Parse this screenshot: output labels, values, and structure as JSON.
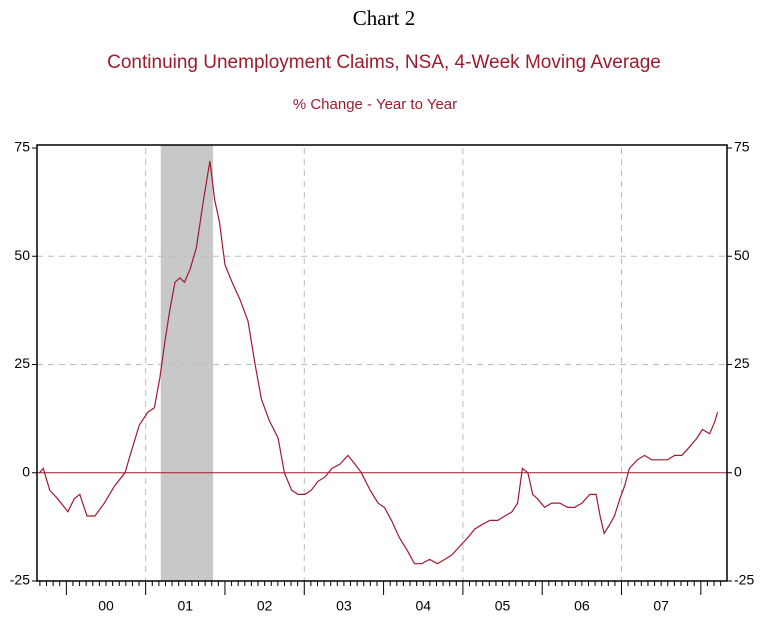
{
  "chart_data": {
    "type": "line",
    "header": "Chart 2",
    "title": "Continuing Unemployment Claims, NSA, 4-Week Moving Average",
    "subtitle": "% Change - Year to Year",
    "color": "#9e1b2e",
    "x": [
      1999.66,
      1999.71,
      1999.79,
      1999.89,
      2000.02,
      2000.1,
      2000.17,
      2000.26,
      2000.36,
      2000.48,
      2000.61,
      2000.74,
      2000.82,
      2000.92,
      2001.03,
      2001.11,
      2001.18,
      2001.24,
      2001.3,
      2001.37,
      2001.43,
      2001.49,
      2001.56,
      2001.64,
      2001.72,
      2001.81,
      2001.87,
      2001.93,
      2002.0,
      2002.09,
      2002.19,
      2002.29,
      2002.38,
      2002.46,
      2002.56,
      2002.67,
      2002.75,
      2002.84,
      2002.92,
      2003.01,
      2003.09,
      2003.17,
      2003.26,
      2003.35,
      2003.45,
      2003.55,
      2003.64,
      2003.72,
      2003.83,
      2003.93,
      2004.01,
      2004.1,
      2004.2,
      2004.3,
      2004.39,
      2004.48,
      2004.58,
      2004.68,
      2004.77,
      2004.86,
      2004.96,
      2005.06,
      2005.15,
      2005.24,
      2005.34,
      2005.44,
      2005.53,
      2005.62,
      2005.69,
      2005.75,
      2005.82,
      2005.88,
      2005.94,
      2006.03,
      2006.12,
      2006.22,
      2006.32,
      2006.41,
      2006.5,
      2006.6,
      2006.68,
      2006.73,
      2006.78,
      2006.85,
      2006.91,
      2006.98,
      2007.04,
      2007.1,
      2007.2,
      2007.29,
      2007.38,
      2007.48,
      2007.58,
      2007.67,
      2007.76,
      2007.86,
      2007.95,
      2008.02,
      2008.11,
      2008.18,
      2008.21
    ],
    "values": [
      0,
      1,
      -4,
      -6,
      -9,
      -6,
      -5,
      -10,
      -10,
      -7,
      -3,
      0,
      5,
      11,
      14,
      15,
      22,
      30,
      37,
      44,
      45,
      44,
      47,
      52,
      62,
      72,
      63,
      58,
      48,
      44,
      40,
      35,
      25,
      17,
      12,
      8,
      0,
      -4,
      -5,
      -5,
      -4,
      -2,
      -1,
      1,
      2,
      4,
      2,
      0,
      -4,
      -7,
      -8,
      -11,
      -15,
      -18,
      -21,
      -21,
      -20,
      -21,
      -20,
      -19,
      -17,
      -15,
      -13,
      -12,
      -11,
      -11,
      -10,
      -9,
      -7,
      1,
      0,
      -5,
      -6,
      -8,
      -7,
      -7,
      -8,
      -8,
      -7,
      -5,
      -5,
      -10,
      -14,
      -12,
      -10,
      -6,
      -3,
      1,
      3,
      4,
      3,
      3,
      3,
      4,
      4,
      6,
      8,
      10,
      9,
      12,
      14
    ],
    "xlim": [
      1999.63,
      2008.33
    ],
    "xticks": [
      {
        "value": 2000.5,
        "label": "00"
      },
      {
        "value": 2001.5,
        "label": "01"
      },
      {
        "value": 2002.5,
        "label": "02"
      },
      {
        "value": 2003.5,
        "label": "03"
      },
      {
        "value": 2004.5,
        "label": "04"
      },
      {
        "value": 2005.5,
        "label": "05"
      },
      {
        "value": 2006.5,
        "label": "06"
      },
      {
        "value": 2007.5,
        "label": "07"
      }
    ],
    "xgrid": [
      2001,
      2003,
      2005,
      2007
    ],
    "recession": [
      2001.19,
      2001.85
    ],
    "ylim": [
      -25,
      75
    ],
    "yticks": [
      -25,
      0,
      25,
      50,
      75
    ],
    "grid": true
  }
}
